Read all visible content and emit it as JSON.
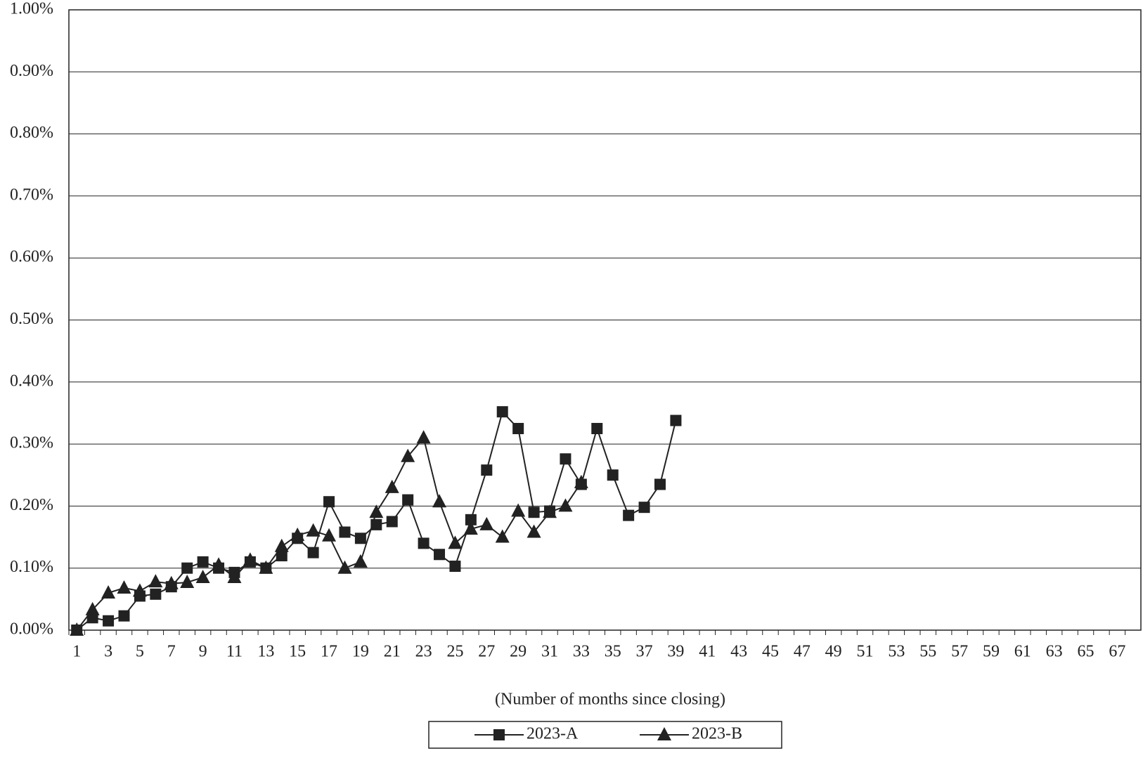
{
  "chart_data": {
    "type": "line",
    "x_label": "(Number of months since closing)",
    "categories": [
      "1",
      null,
      "3",
      null,
      "5",
      null,
      "7",
      null,
      "9",
      null,
      "11",
      null,
      "13",
      null,
      "15",
      null,
      "17",
      null,
      "19",
      null,
      "21",
      null,
      "23",
      null,
      "25",
      null,
      "27",
      null,
      "29",
      null,
      "31",
      null,
      "33",
      null,
      "35",
      null,
      "37",
      null,
      "39",
      null,
      "41",
      null,
      "43",
      null,
      "45",
      null,
      "47",
      null,
      "49",
      null,
      "51",
      null,
      "53",
      null,
      "55",
      null,
      "57",
      null,
      "59",
      null,
      "61",
      null,
      "63",
      null,
      "65",
      null,
      "67",
      null
    ],
    "series": [
      {
        "name": "2023-A",
        "color": "#222222",
        "marker": "square",
        "values": [
          0.0,
          0.02,
          0.015,
          0.023,
          0.055,
          0.058,
          0.07,
          0.1,
          0.11,
          0.1,
          0.093,
          0.11,
          0.1,
          0.12,
          0.148,
          0.125,
          0.207,
          0.158,
          0.148,
          0.17,
          0.175,
          0.21,
          0.14,
          0.122,
          0.103,
          0.178,
          0.258,
          0.352,
          0.325,
          0.19,
          0.192,
          0.276,
          0.235,
          0.325,
          0.25,
          0.185,
          0.198,
          0.235,
          0.338,
          null,
          null,
          null,
          null,
          null,
          null,
          null,
          null,
          null,
          null,
          null,
          null,
          null,
          null,
          null,
          null,
          null,
          null,
          null,
          null,
          null,
          null,
          null,
          null,
          null,
          null,
          null,
          null,
          null
        ]
      },
      {
        "name": "2023-B",
        "color": "#222222",
        "marker": "triangle",
        "values": [
          0.0,
          0.033,
          0.06,
          0.068,
          0.063,
          0.078,
          0.075,
          0.077,
          0.085,
          0.105,
          0.085,
          0.113,
          0.1,
          0.135,
          0.153,
          0.16,
          0.152,
          0.1,
          0.11,
          0.19,
          0.23,
          0.28,
          0.31,
          0.207,
          0.14,
          0.163,
          0.17,
          0.15,
          0.192,
          0.158,
          0.19,
          0.2,
          0.238,
          null,
          null,
          null,
          null,
          null,
          null,
          null,
          null,
          null,
          null,
          null,
          null,
          null,
          null,
          null,
          null,
          null,
          null,
          null,
          null,
          null,
          null,
          null,
          null,
          null,
          null,
          null,
          null,
          null,
          null,
          null,
          null,
          null,
          null,
          null
        ]
      }
    ],
    "ylim": [
      0,
      1.0
    ],
    "yticks": [
      {
        "value": 0,
        "label": "0.00%"
      },
      {
        "value": 0.1,
        "label": "0.10%"
      },
      {
        "value": 0.2,
        "label": "0.20%"
      },
      {
        "value": 0.3,
        "label": "0.30%"
      },
      {
        "value": 0.4,
        "label": "0.40%"
      },
      {
        "value": 0.5,
        "label": "0.50%"
      },
      {
        "value": 0.6,
        "label": "0.60%"
      },
      {
        "value": 0.7,
        "label": "0.70%"
      },
      {
        "value": 0.8,
        "label": "0.80%"
      },
      {
        "value": 0.9,
        "label": "0.90%"
      },
      {
        "value": 1.0,
        "label": "1.00%"
      }
    ],
    "grid": true,
    "legend": "bottom"
  }
}
